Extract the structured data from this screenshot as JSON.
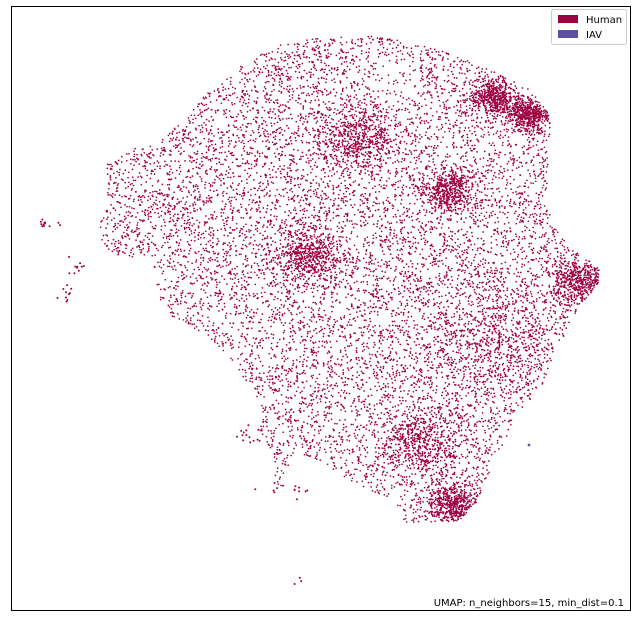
{
  "chart_data": {
    "type": "scatter",
    "title": "",
    "xlabel": "",
    "ylabel": "",
    "axes_visible": false,
    "grid": false,
    "legend_position": "top-right",
    "annotation": "UMAP: n_neighbors=15, min_dist=0.1",
    "series": [
      {
        "name": "Human",
        "color": "#9e0142",
        "clusters": [
          {
            "kind": "main-blob",
            "approx_points": 14000
          },
          {
            "kind": "small-cluster",
            "approx_points": 12
          },
          {
            "kind": "small-cluster",
            "approx_points": 10
          },
          {
            "kind": "small-cluster",
            "approx_points": 10
          },
          {
            "kind": "small-cluster",
            "approx_points": 14
          },
          {
            "kind": "small-cluster",
            "approx_points": 14
          },
          {
            "kind": "small-cluster",
            "approx_points": 3
          }
        ]
      },
      {
        "name": "IAV",
        "color": "#5e4fa2",
        "clusters": [
          {
            "kind": "single-point",
            "approx_points": 1
          }
        ]
      }
    ]
  }
}
